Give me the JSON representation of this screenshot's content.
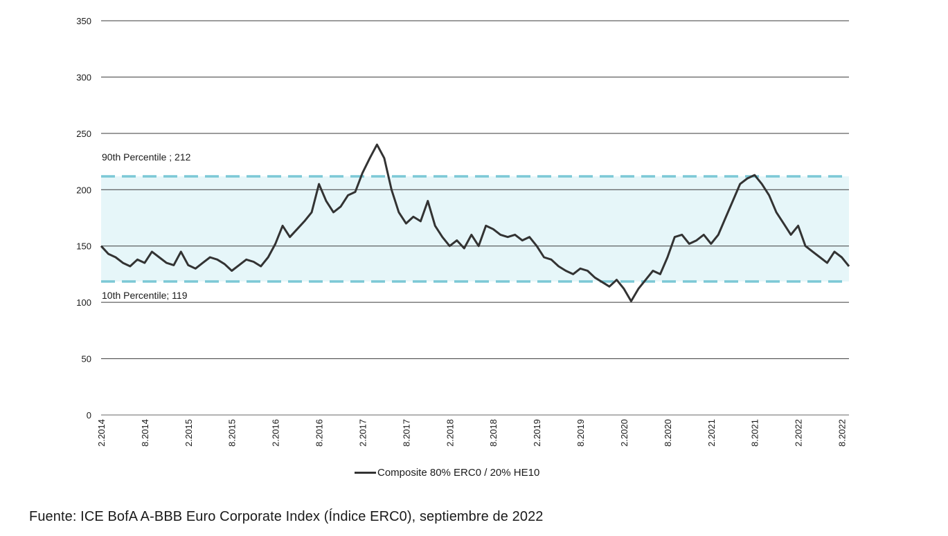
{
  "chart_data": {
    "type": "line",
    "ylim": [
      0,
      350
    ],
    "yticks": [
      "0",
      "50",
      "100",
      "150",
      "200",
      "250",
      "300",
      "350"
    ],
    "xlim": [
      "2014-02",
      "2022-09"
    ],
    "xticks": [
      "2.2014",
      "8.2014",
      "2.2015",
      "8.2015",
      "2.2016",
      "8.2016",
      "2.2017",
      "8.2017",
      "2.2018",
      "8.2018",
      "2.2019",
      "8.2019",
      "2.2020",
      "8.2020",
      "2.2021",
      "8.2021",
      "2.2022",
      "8.2022"
    ],
    "grid": "horizontal",
    "legend": "bottom",
    "band": {
      "low": 119,
      "high": 212,
      "fill": "#e6f6f9",
      "line_color": "#7cc8d6"
    },
    "annotations": {
      "p90": "90th Percentile ; 212",
      "p10": "10th Percentile; 119"
    },
    "series": [
      {
        "name": "Composite 80% ERC0 / 20% HE10",
        "color": "#333333",
        "points": [
          [
            "2014-02",
            150
          ],
          [
            "2014-03",
            143
          ],
          [
            "2014-04",
            140
          ],
          [
            "2014-05",
            135
          ],
          [
            "2014-06",
            132
          ],
          [
            "2014-07",
            138
          ],
          [
            "2014-08",
            135
          ],
          [
            "2014-09",
            145
          ],
          [
            "2014-10",
            140
          ],
          [
            "2014-11",
            135
          ],
          [
            "2014-12",
            133
          ],
          [
            "2015-01",
            145
          ],
          [
            "2015-02",
            133
          ],
          [
            "2015-03",
            130
          ],
          [
            "2015-04",
            135
          ],
          [
            "2015-05",
            140
          ],
          [
            "2015-06",
            138
          ],
          [
            "2015-07",
            134
          ],
          [
            "2015-08",
            128
          ],
          [
            "2015-09",
            133
          ],
          [
            "2015-10",
            138
          ],
          [
            "2015-11",
            136
          ],
          [
            "2015-12",
            132
          ],
          [
            "2016-01",
            140
          ],
          [
            "2016-02",
            152
          ],
          [
            "2016-03",
            168
          ],
          [
            "2016-04",
            158
          ],
          [
            "2016-05",
            165
          ],
          [
            "2016-06",
            172
          ],
          [
            "2016-07",
            180
          ],
          [
            "2016-08",
            205
          ],
          [
            "2016-09",
            190
          ],
          [
            "2016-10",
            180
          ],
          [
            "2016-11",
            185
          ],
          [
            "2016-12",
            195
          ],
          [
            "2017-01",
            198
          ],
          [
            "2017-02",
            215
          ],
          [
            "2017-03",
            228
          ],
          [
            "2017-04",
            240
          ],
          [
            "2017-05",
            228
          ],
          [
            "2017-06",
            200
          ],
          [
            "2017-07",
            180
          ],
          [
            "2017-08",
            170
          ],
          [
            "2017-09",
            176
          ],
          [
            "2017-10",
            172
          ],
          [
            "2017-11",
            190
          ],
          [
            "2017-12",
            168
          ],
          [
            "2018-01",
            158
          ],
          [
            "2018-02",
            150
          ],
          [
            "2018-03",
            155
          ],
          [
            "2018-04",
            148
          ],
          [
            "2018-05",
            160
          ],
          [
            "2018-06",
            150
          ],
          [
            "2018-07",
            168
          ],
          [
            "2018-08",
            165
          ],
          [
            "2018-09",
            160
          ],
          [
            "2018-10",
            158
          ],
          [
            "2018-11",
            160
          ],
          [
            "2018-12",
            155
          ],
          [
            "2019-01",
            158
          ],
          [
            "2019-02",
            150
          ],
          [
            "2019-03",
            140
          ],
          [
            "2019-04",
            138
          ],
          [
            "2019-05",
            132
          ],
          [
            "2019-06",
            128
          ],
          [
            "2019-07",
            125
          ],
          [
            "2019-08",
            130
          ],
          [
            "2019-09",
            128
          ],
          [
            "2019-10",
            122
          ],
          [
            "2019-11",
            118
          ],
          [
            "2019-12",
            114
          ],
          [
            "2020-01",
            120
          ],
          [
            "2020-02",
            112
          ],
          [
            "2020-03",
            101
          ],
          [
            "2020-04",
            112
          ],
          [
            "2020-05",
            120
          ],
          [
            "2020-06",
            128
          ],
          [
            "2020-07",
            125
          ],
          [
            "2020-08",
            140
          ],
          [
            "2020-09",
            158
          ],
          [
            "2020-10",
            160
          ],
          [
            "2020-11",
            152
          ],
          [
            "2020-12",
            155
          ],
          [
            "2021-01",
            160
          ],
          [
            "2021-02",
            152
          ],
          [
            "2021-03",
            160
          ],
          [
            "2021-04",
            175
          ],
          [
            "2021-05",
            190
          ],
          [
            "2021-06",
            205
          ],
          [
            "2021-07",
            210
          ],
          [
            "2021-08",
            213
          ],
          [
            "2021-09",
            205
          ],
          [
            "2021-10",
            195
          ],
          [
            "2021-11",
            180
          ],
          [
            "2021-12",
            170
          ],
          [
            "2022-01",
            160
          ],
          [
            "2022-02",
            168
          ],
          [
            "2022-03",
            150
          ],
          [
            "2022-04",
            145
          ],
          [
            "2022-05",
            140
          ],
          [
            "2022-06",
            135
          ],
          [
            "2022-07",
            145
          ],
          [
            "2022-08",
            140
          ],
          [
            "2022-09",
            132
          ]
        ]
      }
    ]
  },
  "source": "Fuente: ICE BofA A-BBB Euro Corporate Index (Índice ERC0), septiembre de 2022"
}
